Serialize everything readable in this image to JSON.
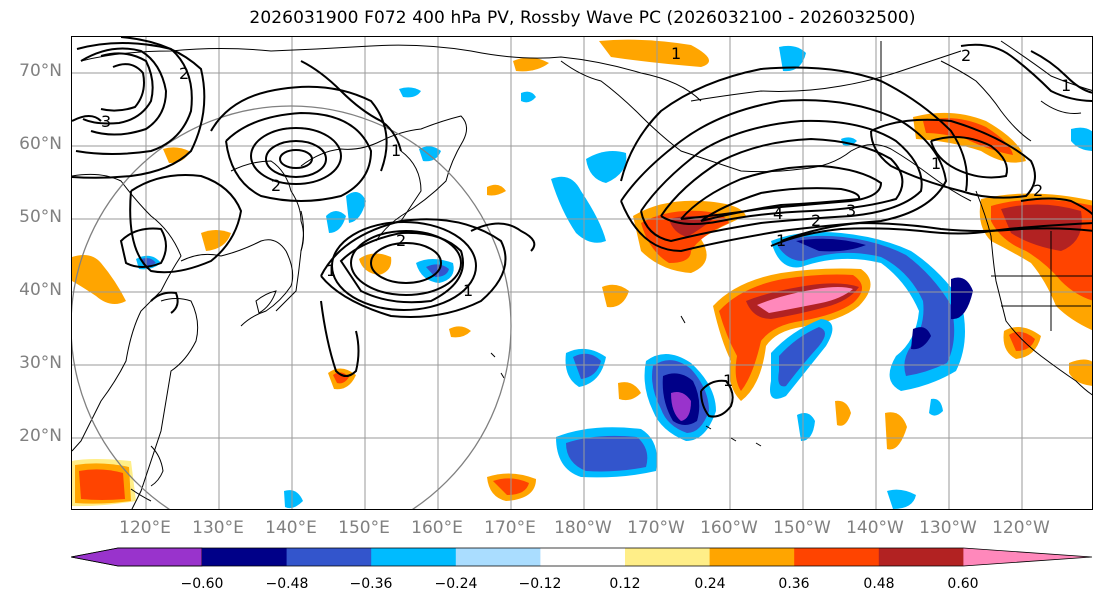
{
  "title": "2026031900 F072 400 hPa PV, Rossby Wave PC (2026032100 - 2026032500)",
  "map": {
    "lat_labels": [
      "70°N",
      "60°N",
      "50°N",
      "40°N",
      "30°N",
      "20°N"
    ],
    "lon_labels": [
      "120°E",
      "130°E",
      "140°E",
      "150°E",
      "160°E",
      "170°E",
      "180°W",
      "170°W",
      "160°W",
      "150°W",
      "140°W",
      "130°W",
      "120°W"
    ],
    "contour_labels": [
      "3",
      "2",
      "2",
      "1",
      "2",
      "1",
      "1",
      "2",
      "3",
      "4",
      "2",
      "1",
      "1",
      "2",
      "1",
      "1",
      "1"
    ]
  },
  "colorbar": {
    "ticks": [
      "−0.60",
      "−0.48",
      "−0.36",
      "−0.24",
      "−0.12",
      "0.12",
      "0.24",
      "0.36",
      "0.48",
      "0.60"
    ],
    "colors": [
      "#9933CC",
      "#000088",
      "#3355CC",
      "#00BBFF",
      "#AADDFF",
      "#FFFFFF",
      "#FFEE88",
      "#FFA500",
      "#FF4400",
      "#B22222",
      "#FF88BB"
    ]
  },
  "colors": {
    "purple": "#9933CC",
    "navy": "#000088",
    "blue": "#3355CC",
    "cyan": "#00BBFF",
    "lightblue": "#AADDFF",
    "yellow": "#FFEE88",
    "orange": "#FFA500",
    "red": "#FF4400",
    "darkred": "#B22222",
    "pink": "#FF88BB",
    "grid": "#9a9a9a",
    "coast": "#000000",
    "circle": "#808080"
  }
}
